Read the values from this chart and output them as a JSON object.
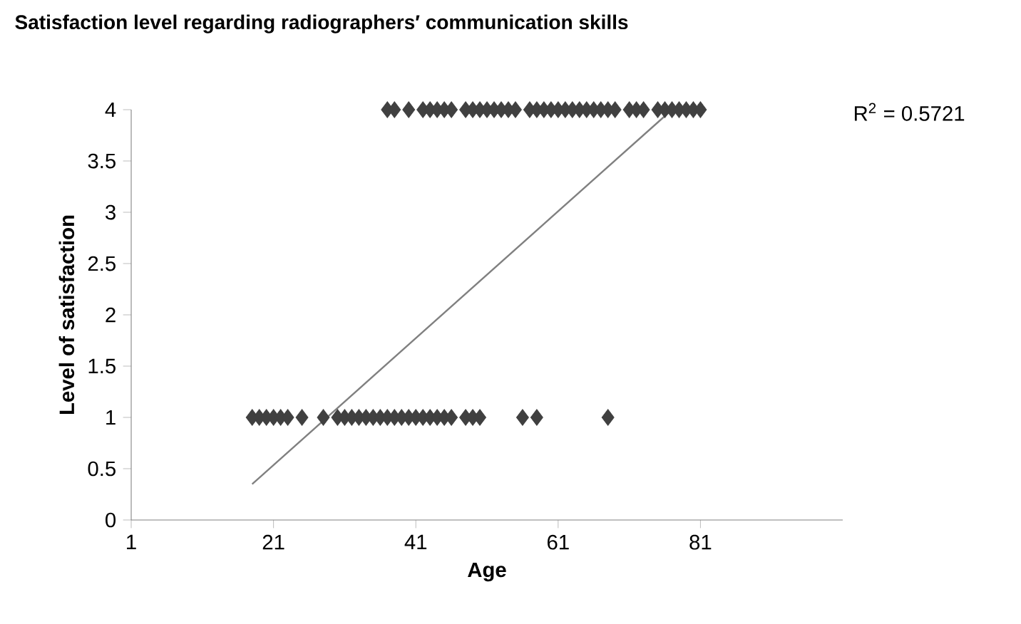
{
  "chart_data": {
    "type": "scatter",
    "title": "Satisfaction level regarding radiographers′ communication skills",
    "xlabel": "Age",
    "ylabel": "Level of satisfaction",
    "annotations": [
      "R$^{2}$ = 0.5721"
    ],
    "series": [
      {
        "color": "#404040",
        "marker": "diamond",
        "x": [
          18,
          19,
          20,
          21,
          22,
          23,
          25,
          28,
          30,
          31,
          32,
          33,
          34,
          35,
          36,
          37,
          38,
          39,
          40,
          41,
          42,
          43,
          44,
          45,
          46,
          48,
          49,
          50,
          56,
          58,
          68,
          37,
          38,
          40,
          42,
          43,
          44,
          45,
          46,
          48,
          49,
          50,
          51,
          52,
          53,
          54,
          55,
          57,
          58,
          59,
          60,
          61,
          62,
          63,
          64,
          65,
          66,
          67,
          68,
          69,
          71,
          72,
          73,
          75,
          76,
          77,
          78,
          79,
          80,
          81
        ],
        "values": [
          1,
          1,
          1,
          1,
          1,
          1,
          1,
          1,
          1,
          1,
          1,
          1,
          1,
          1,
          1,
          1,
          1,
          1,
          1,
          1,
          1,
          1,
          1,
          1,
          1,
          1,
          1,
          1,
          1,
          1,
          1,
          4,
          4,
          4,
          4,
          4,
          4,
          4,
          4,
          4,
          4,
          4,
          4,
          4,
          4,
          4,
          4,
          4,
          4,
          4,
          4,
          4,
          4,
          4,
          4,
          4,
          4,
          4,
          4,
          4,
          4,
          4,
          4,
          4,
          4,
          4,
          4,
          4,
          4,
          4
        ]
      },
      {
        "type": "line",
        "color": "#808080",
        "x": [
          18,
          77
        ],
        "values": [
          0.35,
          4
        ]
      }
    ],
    "xlim": [
      1,
      101
    ],
    "ylim": [
      0,
      4
    ],
    "xticks": [
      1,
      21,
      41,
      61,
      81
    ],
    "yticks": [
      0,
      0.5,
      1,
      1.5,
      2,
      2.5,
      3,
      3.5,
      4
    ],
    "grid": false
  }
}
